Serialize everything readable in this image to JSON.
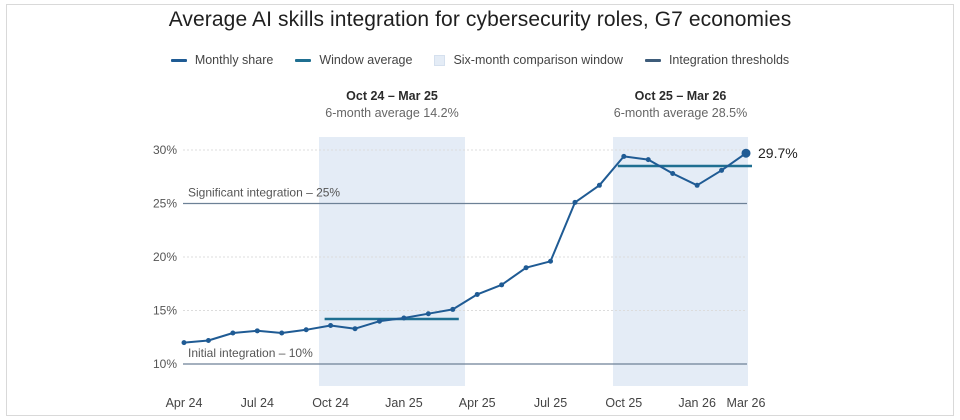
{
  "chart_data": {
    "type": "line",
    "title": "Average AI skills integration for cybersecurity roles, G7 economies",
    "legend": [
      {
        "label": "Monthly share",
        "color": "#1f5b94",
        "kind": "line"
      },
      {
        "label": "Window average",
        "color": "#1f6f91",
        "kind": "line"
      },
      {
        "label": "Six-month comparison window",
        "color": "#e4ecf6",
        "kind": "box"
      },
      {
        "label": "Integration thresholds",
        "color": "#3e5c7a",
        "kind": "line"
      }
    ],
    "x_tick_labels": [
      "Apr 24",
      "Jul 24",
      "Oct 24",
      "Jan 25",
      "Apr 25",
      "Jul 25",
      "Oct 25",
      "Jan 26",
      "Mar 26"
    ],
    "x_tick_index": [
      0,
      3,
      6,
      9,
      12,
      15,
      18,
      21,
      23
    ],
    "y_ticks": [
      10,
      15,
      20,
      25,
      30
    ],
    "y_tick_labels": [
      "10%",
      "15%",
      "20%",
      "25%",
      "30%"
    ],
    "ylim": [
      9.5,
      31
    ],
    "grid": true,
    "series": [
      {
        "values": [
          12.0,
          12.2,
          12.9,
          13.1,
          12.9,
          13.2,
          13.6,
          13.3,
          14.0,
          14.3,
          14.7,
          15.1,
          16.5,
          17.4,
          19.0,
          19.6,
          25.1,
          26.7,
          29.4,
          29.1,
          27.8,
          26.7,
          28.1,
          29.7
        ],
        "color": "#1f5b94",
        "end_label": "29.7%"
      }
    ],
    "windows": [
      {
        "start_index": 6,
        "end_index": 11,
        "title": "Oct 24 – Mar 25",
        "subtitle": "6-month average 14.2%",
        "average": 14.2
      },
      {
        "start_index": 18,
        "end_index": 23,
        "title": "Oct 25 – Mar 26",
        "subtitle": "6-month average 28.5%",
        "average": 28.5
      }
    ],
    "thresholds": [
      {
        "value": 25,
        "label": "Significant integration – 25%"
      },
      {
        "value": 10,
        "label": "Initial integration – 10%"
      }
    ]
  }
}
